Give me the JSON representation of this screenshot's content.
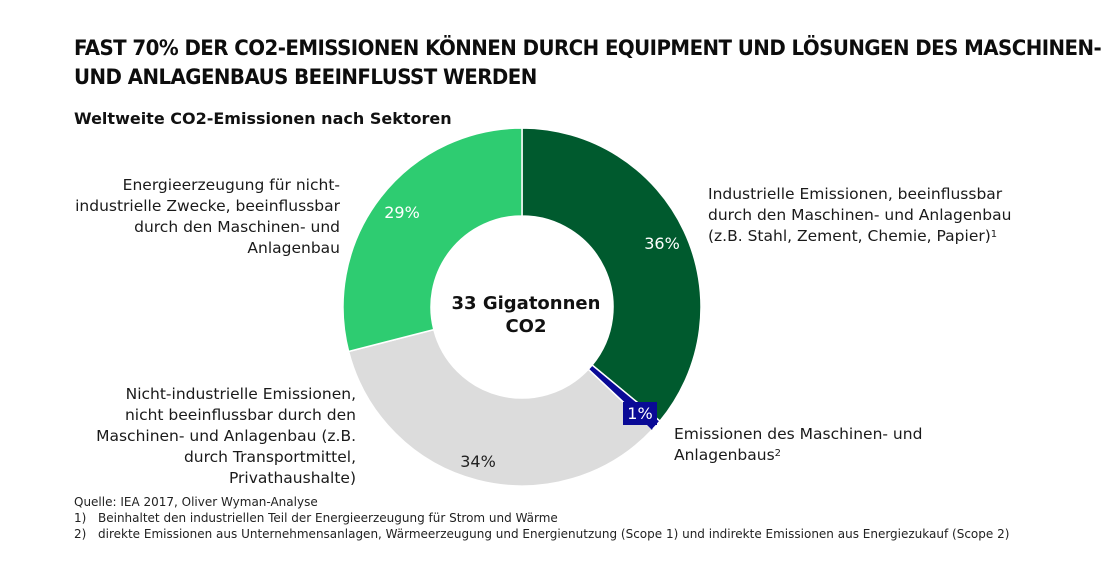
{
  "title_lines": [
    "Fast 70% der CO2-Emissionen können durch Equipment und Lösungen des Maschinen-",
    "und Anlagenbaus beeinflusst werden"
  ],
  "subtitle": "Weltweite CO2-Emissionen nach Sektoren",
  "center": {
    "line1": "33 Gigatonnen",
    "line2": "CO2"
  },
  "labels": {
    "industrial": {
      "lines": [
        "Industrielle Emissionen, beeinflussbar",
        "durch den Maschinen- und Anlagenbau",
        "(z.B. Stahl, Zement, Chemie, Papier)"
      ],
      "sup": "1"
    },
    "machinery": {
      "lines": [
        "Emissionen des Maschinen- und",
        "Anlagenbaus"
      ],
      "sup": "2"
    },
    "non_industrial": {
      "lines": [
        "Nicht-industrielle Emissionen,",
        "nicht beeinflussbar durch den",
        "Maschinen- und Anlagenbau (z.B.",
        "durch Transportmittel,",
        "Privathaushalte)"
      ]
    },
    "energy": {
      "lines": [
        "Energieerzeugung für nicht-",
        "industrielle Zwecke, beeinflussbar",
        "durch den Maschinen- und",
        "Anlagenbau"
      ]
    }
  },
  "footer": {
    "source": "Quelle: IEA 2017, Oliver Wyman-Analyse",
    "notes": [
      {
        "num": "1)",
        "text": "Beinhaltet den industriellen Teil der Energieerzeugung für Strom und Wärme"
      },
      {
        "num": "2)",
        "text": "direkte Emissionen aus Unternehmensanlagen, Wärmeerzeugung und Energienutzung (Scope 1) und indirekte Emissionen aus Energiezukauf (Scope 2)"
      }
    ]
  },
  "chart_data": {
    "type": "pie",
    "variant": "donut",
    "title": "Weltweite CO2-Emissionen nach Sektoren",
    "total_label": "33 Gigatonnen CO2",
    "start": "12 o'clock, clockwise",
    "slices": [
      {
        "key": "industrial",
        "label": "Industrielle Emissionen, beeinflussbar durch den Maschinen- und Anlagenbau",
        "value": 36,
        "display": "36%",
        "color": "#005a2e",
        "text_color": "#ffffff"
      },
      {
        "key": "machinery",
        "label": "Emissionen des Maschinen- und Anlagenbaus",
        "value": 1,
        "display": "1%",
        "color": "#0a0a96",
        "text_color": "#ffffff"
      },
      {
        "key": "non_industrial",
        "label": "Nicht-industrielle Emissionen",
        "value": 34,
        "display": "34%",
        "color": "#dcdcdc",
        "text_color": "#222222"
      },
      {
        "key": "energy",
        "label": "Energieerzeugung für nicht-industrielle Zwecke",
        "value": 29,
        "display": "29%",
        "color": "#2ecc71",
        "text_color": "#ffffff"
      }
    ]
  }
}
